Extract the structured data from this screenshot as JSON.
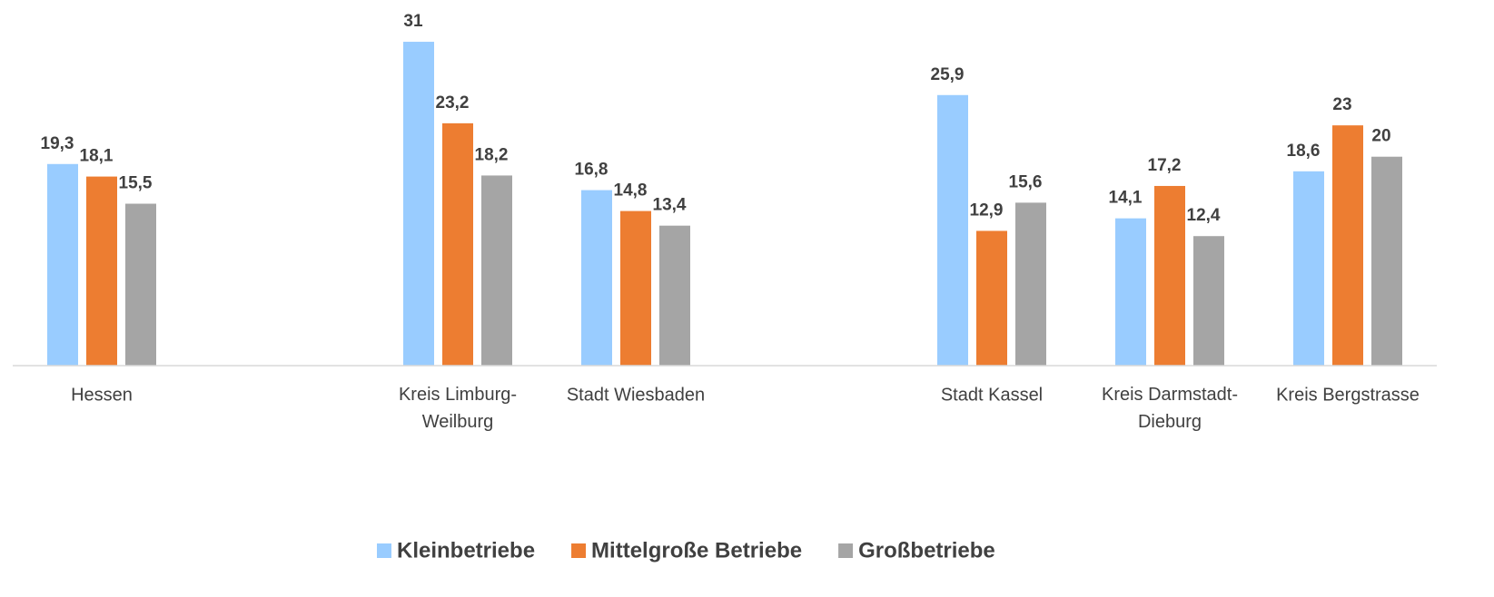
{
  "chart_data": {
    "type": "bar",
    "categories": [
      "Hessen",
      null,
      "Kreis Limburg-Weilburg",
      "Stadt Wiesbaden",
      null,
      "Stadt Kassel",
      "Kreis Darmstadt-Dieburg",
      "Kreis Bergstrasse"
    ],
    "series": [
      {
        "name": "Kleinbetriebe",
        "color": "#99ccff",
        "values": [
          19.3,
          null,
          31,
          16.8,
          null,
          25.9,
          14.1,
          18.6
        ],
        "value_labels": [
          "19,3",
          null,
          "31",
          "16,8",
          null,
          "25,9",
          "14,1",
          "18,6"
        ]
      },
      {
        "name": "Mittelgroße Betriebe",
        "color": "#ed7d31",
        "values": [
          18.1,
          null,
          23.2,
          14.8,
          null,
          12.9,
          17.2,
          23
        ],
        "value_labels": [
          "18,1",
          null,
          "23,2",
          "14,8",
          null,
          "12,9",
          "17,2",
          "23"
        ]
      },
      {
        "name": "Großbetriebe",
        "color": "#a5a5a5",
        "values": [
          15.5,
          null,
          18.2,
          13.4,
          null,
          15.6,
          12.4,
          20
        ],
        "value_labels": [
          "15,5",
          null,
          "18,2",
          "13,4",
          null,
          "15,6",
          "12,4",
          "20"
        ]
      }
    ],
    "ylim": [
      0,
      35
    ],
    "legend": "bottom"
  }
}
